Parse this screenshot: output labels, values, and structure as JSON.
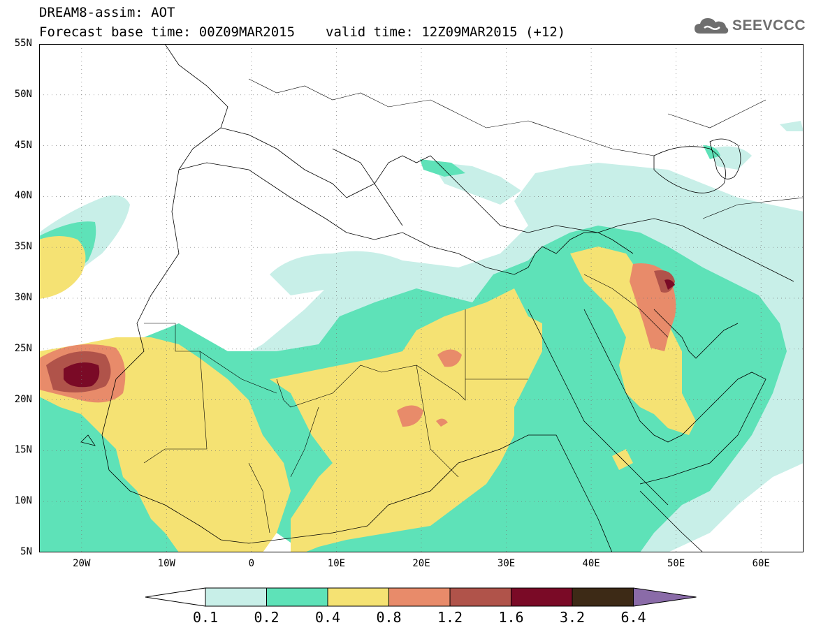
{
  "header": {
    "title": "DREAM8-assim: AOT",
    "base_time": "Forecast base time: 00Z09MAR2015",
    "valid_time": "valid time: 12Z09MAR2015 (+12)"
  },
  "logo": {
    "text": "SEEVCCC",
    "icon": "cloud-icon"
  },
  "map": {
    "lat_labels": [
      "55N",
      "50N",
      "45N",
      "40N",
      "35N",
      "30N",
      "25N",
      "20N",
      "15N",
      "10N",
      "5N"
    ],
    "lon_labels": [
      "20W",
      "10W",
      "0",
      "10E",
      "20E",
      "30E",
      "40E",
      "50E",
      "60E"
    ],
    "lat_range": [
      5,
      55
    ],
    "lon_range": [
      -25,
      65
    ],
    "grid": "dotted"
  },
  "colorbar": {
    "labels": [
      "0.1",
      "0.2",
      "0.4",
      "0.8",
      "1.2",
      "1.6",
      "3.2",
      "6.4"
    ],
    "colors": [
      "#ffffff",
      "#c8efe8",
      "#5ee2b8",
      "#f5e273",
      "#e88b6a",
      "#b0534a",
      "#7a0a26",
      "#3d2a16",
      "#8a6ba8"
    ]
  }
}
